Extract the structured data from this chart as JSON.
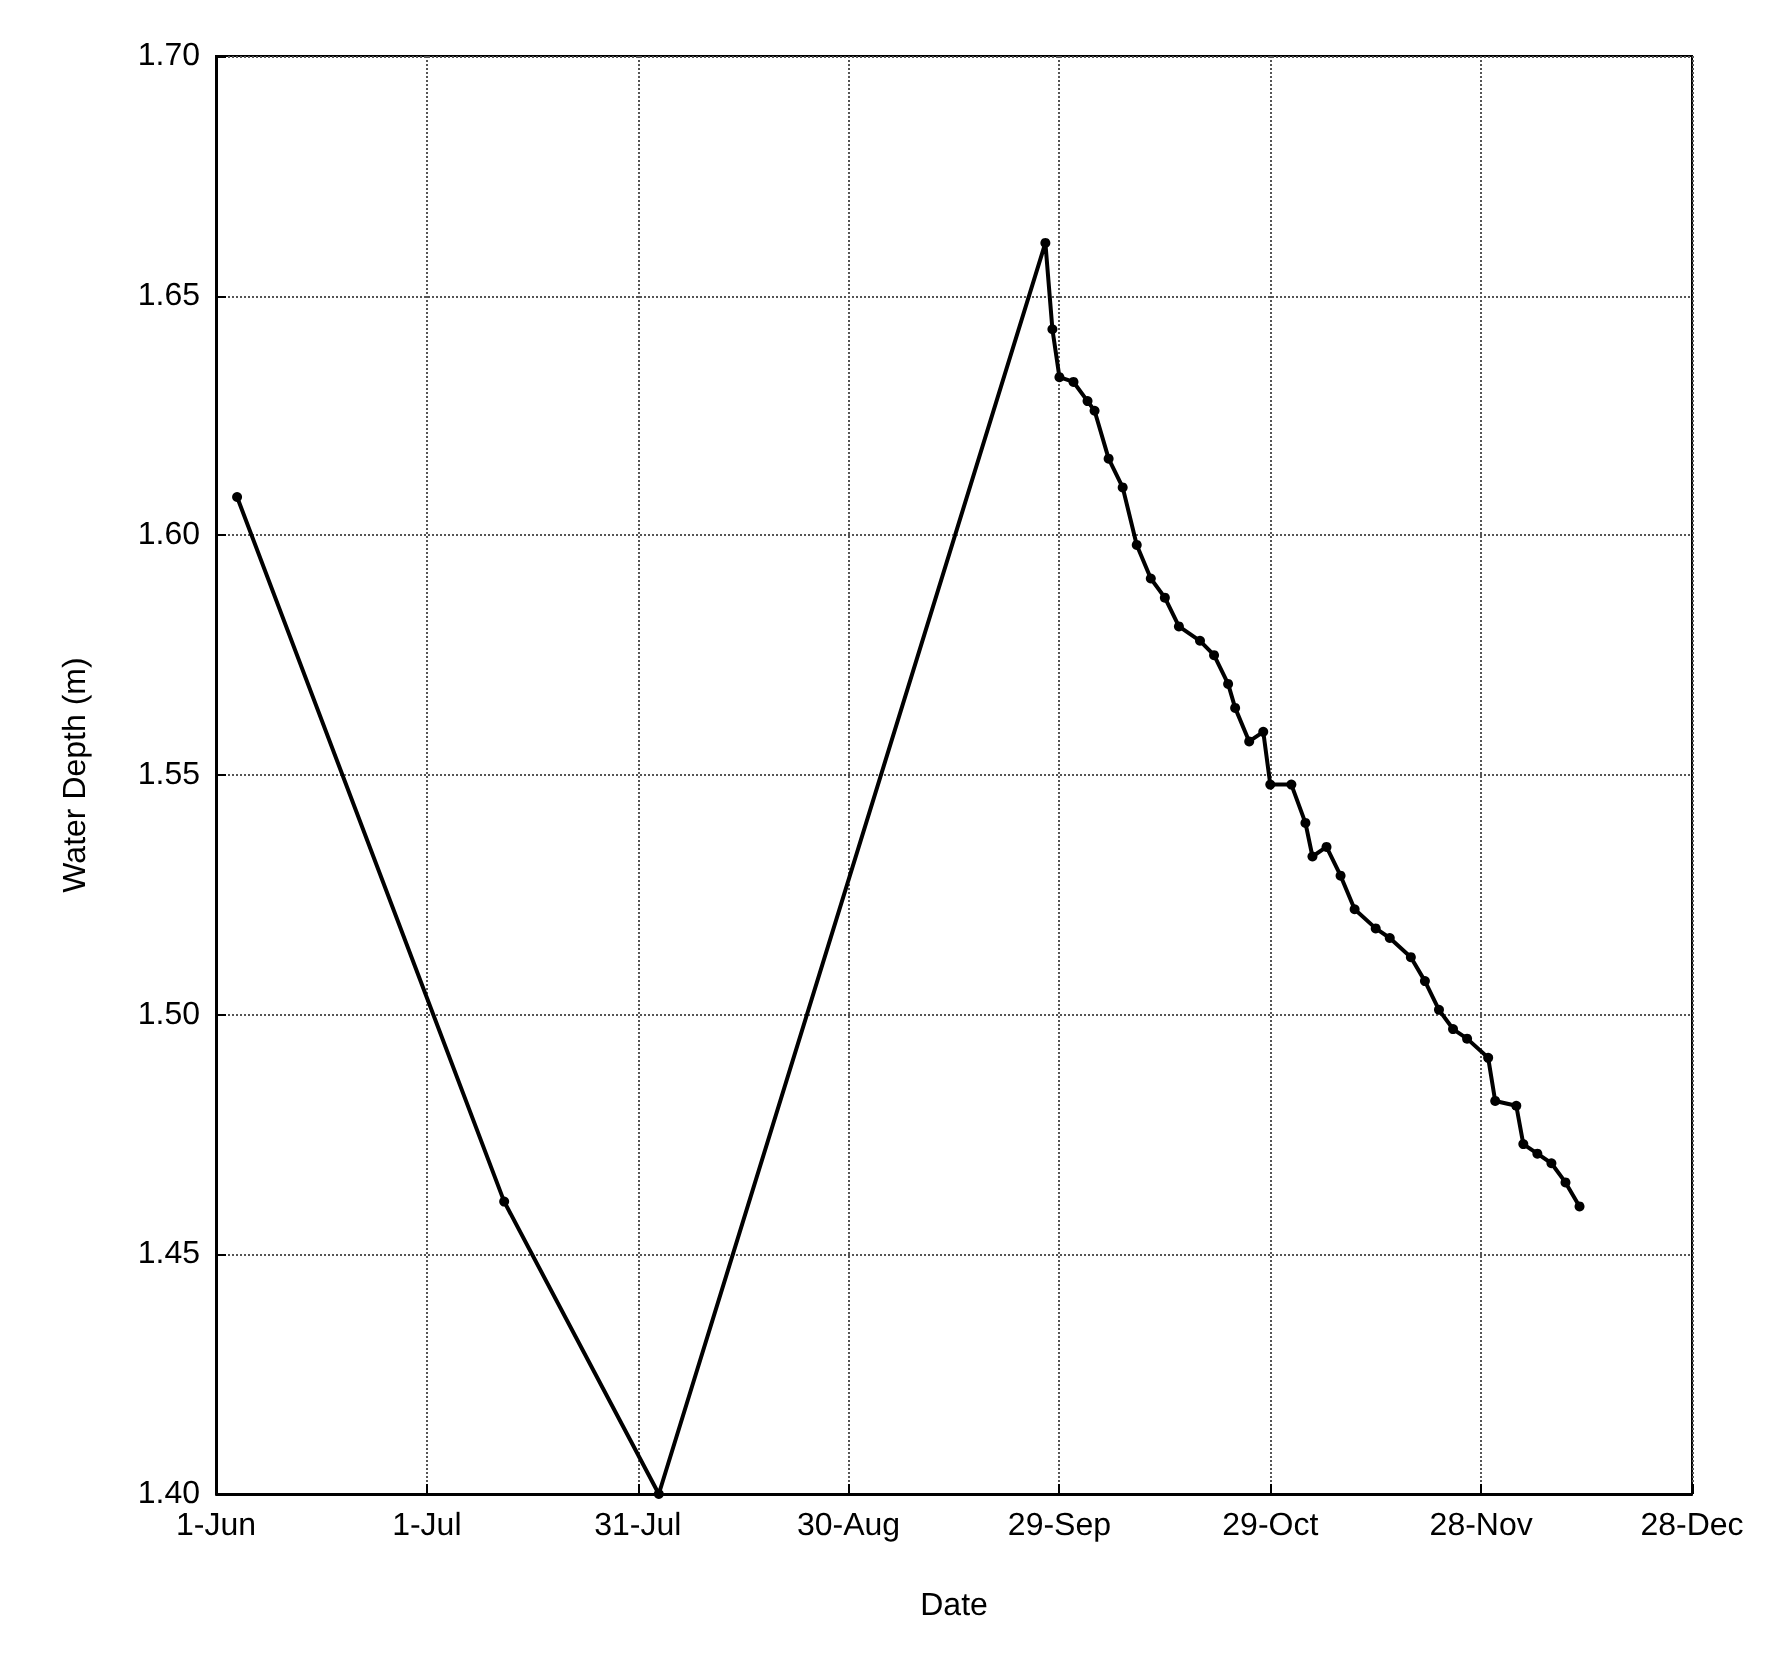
{
  "chart_data": {
    "type": "line",
    "xlabel": "Date",
    "ylabel": "Water Depth (m)",
    "xlim": [
      "--06-01",
      "--12-28"
    ],
    "xticks": [
      {
        "value": "--06-01",
        "label": "1-Jun"
      },
      {
        "value": "--07-01",
        "label": "1-Jul"
      },
      {
        "value": "--07-31",
        "label": "31-Jul"
      },
      {
        "value": "--08-30",
        "label": "30-Aug"
      },
      {
        "value": "--09-29",
        "label": "29-Sep"
      },
      {
        "value": "--10-29",
        "label": "29-Oct"
      },
      {
        "value": "--11-28",
        "label": "28-Nov"
      },
      {
        "value": "--12-28",
        "label": "28-Dec"
      }
    ],
    "ylim": [
      1.4,
      1.7
    ],
    "yticks": [
      {
        "value": 1.4,
        "label": "1.40"
      },
      1.45,
      {
        "value": 1.5,
        "label": "1.50"
      },
      1.55,
      {
        "value": 1.6,
        "label": "1.60"
      },
      1.65,
      {
        "value": 1.7,
        "label": "1.70"
      }
    ],
    "grid": true,
    "marker": "circle",
    "line_style": "solid",
    "x": [
      "--06-04",
      "--07-12",
      "--08-03",
      "--09-27",
      "--09-28",
      "--09-29",
      "--10-01",
      "--10-03",
      "--10-04",
      "--10-06",
      "--10-08",
      "--10-10",
      "--10-12",
      "--10-14",
      "--10-16",
      "--10-19",
      "--10-21",
      "--10-23",
      "--10-24",
      "--10-26",
      "--10-28",
      "--10-29",
      "--11-01",
      "--11-03",
      "--11-04",
      "--11-06",
      "--11-08",
      "--11-10",
      "--11-13",
      "--11-15",
      "--11-18",
      "--11-20",
      "--11-22",
      "--11-24",
      "--11-26",
      "--11-29",
      "--11-30",
      "--12-03",
      "--12-04",
      "--12-06",
      "--12-08",
      "--12-10",
      "--12-12"
    ],
    "series": [
      {
        "color": "#000000",
        "values": [
          1.608,
          1.461,
          1.4,
          1.661,
          1.643,
          1.633,
          1.632,
          1.628,
          1.626,
          1.616,
          1.61,
          1.598,
          1.591,
          1.587,
          1.581,
          1.578,
          1.575,
          1.569,
          1.564,
          1.557,
          1.559,
          1.548,
          1.548,
          1.54,
          1.533,
          1.535,
          1.529,
          1.522,
          1.518,
          1.516,
          1.512,
          1.507,
          1.501,
          1.497,
          1.495,
          1.491,
          1.482,
          1.481,
          1.473,
          1.471,
          1.469,
          1.465,
          1.46
        ]
      }
    ]
  }
}
